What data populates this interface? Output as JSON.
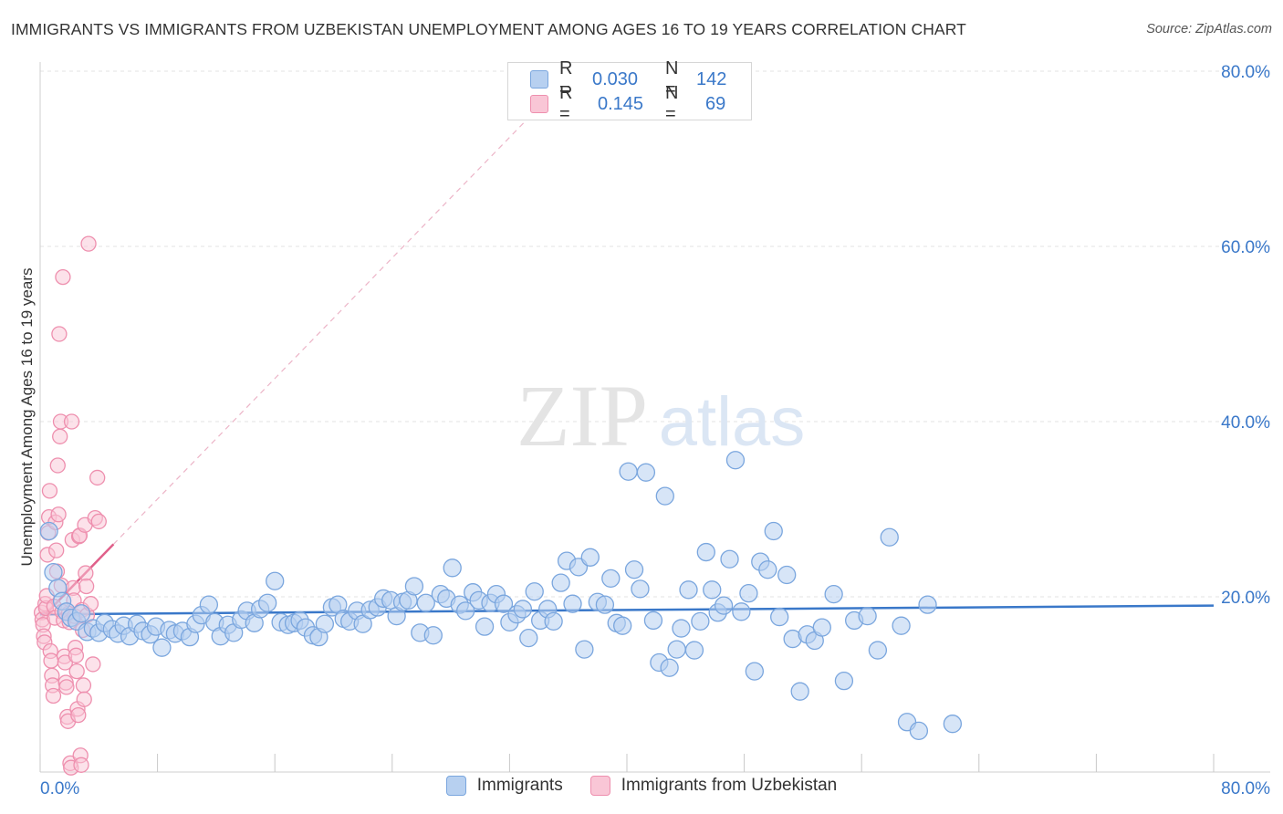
{
  "title": "IMMIGRANTS VS IMMIGRANTS FROM UZBEKISTAN UNEMPLOYMENT AMONG AGES 16 TO 19 YEARS CORRELATION CHART",
  "source": "Source: ZipAtlas.com",
  "watermark": {
    "zip": "ZIP",
    "atlas": "atlas"
  },
  "legend_top": [
    {
      "r_label": "R =",
      "r_value": "0.030",
      "n_label": "N =",
      "n_value": "142"
    },
    {
      "r_label": "R =",
      "r_value": "0.145",
      "n_label": "N =",
      "n_value": "69"
    }
  ],
  "colors": {
    "blue": "#3a78c9",
    "blue_fill": "#b7d0f0",
    "blue_stroke": "#7aa6de",
    "pink": "#e0608a",
    "pink_fill": "#f9c6d6",
    "pink_stroke": "#ee8fae",
    "grid": "#e3e3e3",
    "axis_text": "#3a78c9"
  },
  "chart_data": {
    "type": "scatter",
    "title": "IMMIGRANTS VS IMMIGRANTS FROM UZBEKISTAN UNEMPLOYMENT AMONG AGES 16 TO 19 YEARS CORRELATION CHART",
    "xlabel": "",
    "ylabel": "Unemployment Among Ages 16 to 19 years",
    "xlim": [
      0,
      80
    ],
    "ylim": [
      0,
      80
    ],
    "x_tick_labels": [
      "0.0%",
      "80.0%"
    ],
    "y_tick_labels": [
      "20.0%",
      "40.0%",
      "60.0%",
      "80.0%"
    ],
    "y_ticks": [
      20,
      40,
      60,
      80
    ],
    "legend": [
      "Immigrants",
      "Immigrants from Uzbekistan"
    ],
    "series": [
      {
        "name": "Immigrants",
        "color": "#3a78c9",
        "trend": {
          "x": [
            0,
            80
          ],
          "y": [
            18.0,
            19.0
          ]
        },
        "points": [
          [
            0.6,
            27.5
          ],
          [
            0.9,
            22.8
          ],
          [
            1.2,
            21.0
          ],
          [
            1.5,
            19.5
          ],
          [
            1.8,
            18.3
          ],
          [
            2.1,
            17.6
          ],
          [
            2.5,
            17.2
          ],
          [
            2.8,
            18.1
          ],
          [
            3.2,
            16.0
          ],
          [
            3.6,
            16.4
          ],
          [
            4.0,
            15.9
          ],
          [
            4.4,
            17.0
          ],
          [
            4.9,
            16.3
          ],
          [
            5.3,
            15.8
          ],
          [
            5.7,
            16.7
          ],
          [
            6.1,
            15.5
          ],
          [
            6.6,
            16.9
          ],
          [
            7.0,
            16.1
          ],
          [
            7.5,
            15.7
          ],
          [
            7.9,
            16.6
          ],
          [
            8.3,
            14.2
          ],
          [
            8.8,
            16.2
          ],
          [
            9.2,
            15.8
          ],
          [
            9.7,
            16.1
          ],
          [
            10.2,
            15.4
          ],
          [
            10.6,
            16.9
          ],
          [
            11.0,
            17.9
          ],
          [
            11.5,
            19.1
          ],
          [
            11.9,
            17.1
          ],
          [
            12.3,
            15.5
          ],
          [
            12.8,
            16.8
          ],
          [
            13.2,
            15.9
          ],
          [
            13.7,
            17.4
          ],
          [
            14.1,
            18.4
          ],
          [
            14.6,
            17.0
          ],
          [
            15.0,
            18.6
          ],
          [
            15.5,
            19.3
          ],
          [
            16.0,
            21.8
          ],
          [
            16.4,
            17.1
          ],
          [
            16.9,
            16.8
          ],
          [
            17.3,
            17.0
          ],
          [
            17.7,
            17.3
          ],
          [
            18.1,
            16.5
          ],
          [
            18.6,
            15.6
          ],
          [
            19.0,
            15.4
          ],
          [
            19.4,
            16.9
          ],
          [
            19.9,
            18.8
          ],
          [
            20.3,
            19.1
          ],
          [
            20.7,
            17.5
          ],
          [
            21.1,
            17.2
          ],
          [
            21.6,
            18.4
          ],
          [
            22.0,
            16.9
          ],
          [
            22.5,
            18.5
          ],
          [
            23.0,
            18.8
          ],
          [
            23.4,
            19.8
          ],
          [
            23.9,
            19.6
          ],
          [
            24.3,
            17.8
          ],
          [
            24.7,
            19.4
          ],
          [
            25.1,
            19.6
          ],
          [
            25.5,
            21.2
          ],
          [
            25.9,
            15.9
          ],
          [
            26.3,
            19.3
          ],
          [
            26.8,
            15.6
          ],
          [
            27.3,
            20.3
          ],
          [
            27.7,
            19.8
          ],
          [
            28.1,
            23.3
          ],
          [
            28.6,
            19.1
          ],
          [
            29.0,
            18.4
          ],
          [
            29.5,
            20.5
          ],
          [
            29.9,
            19.6
          ],
          [
            30.3,
            16.6
          ],
          [
            30.7,
            19.3
          ],
          [
            31.1,
            20.3
          ],
          [
            31.6,
            19.2
          ],
          [
            32.0,
            17.1
          ],
          [
            32.5,
            18.0
          ],
          [
            32.9,
            18.6
          ],
          [
            33.3,
            15.3
          ],
          [
            33.7,
            20.6
          ],
          [
            34.1,
            17.3
          ],
          [
            34.6,
            18.6
          ],
          [
            35.0,
            17.2
          ],
          [
            35.5,
            21.6
          ],
          [
            35.9,
            24.1
          ],
          [
            36.3,
            19.2
          ],
          [
            36.7,
            23.4
          ],
          [
            37.1,
            14.0
          ],
          [
            37.5,
            24.5
          ],
          [
            38.0,
            19.4
          ],
          [
            38.5,
            19.1
          ],
          [
            38.9,
            22.1
          ],
          [
            39.3,
            17.0
          ],
          [
            39.7,
            16.7
          ],
          [
            40.1,
            34.3
          ],
          [
            40.5,
            23.1
          ],
          [
            40.9,
            20.9
          ],
          [
            41.3,
            34.2
          ],
          [
            41.8,
            17.3
          ],
          [
            42.2,
            12.5
          ],
          [
            42.6,
            31.5
          ],
          [
            42.9,
            11.9
          ],
          [
            43.4,
            14.0
          ],
          [
            43.7,
            16.4
          ],
          [
            44.2,
            20.8
          ],
          [
            44.6,
            13.9
          ],
          [
            45.0,
            17.2
          ],
          [
            45.4,
            25.1
          ],
          [
            45.8,
            20.8
          ],
          [
            46.2,
            18.2
          ],
          [
            46.6,
            19.0
          ],
          [
            47.0,
            24.3
          ],
          [
            47.4,
            35.6
          ],
          [
            47.8,
            18.3
          ],
          [
            48.3,
            20.4
          ],
          [
            48.7,
            11.5
          ],
          [
            49.1,
            24.0
          ],
          [
            49.6,
            23.1
          ],
          [
            50.0,
            27.5
          ],
          [
            50.4,
            17.7
          ],
          [
            50.9,
            22.5
          ],
          [
            51.3,
            15.2
          ],
          [
            51.8,
            9.2
          ],
          [
            52.3,
            15.7
          ],
          [
            52.8,
            15.0
          ],
          [
            53.3,
            16.5
          ],
          [
            54.1,
            20.3
          ],
          [
            54.8,
            10.4
          ],
          [
            55.5,
            17.3
          ],
          [
            56.4,
            17.8
          ],
          [
            57.1,
            13.9
          ],
          [
            57.9,
            26.8
          ],
          [
            58.7,
            16.7
          ],
          [
            59.1,
            5.7
          ],
          [
            59.9,
            4.7
          ],
          [
            60.5,
            19.1
          ],
          [
            62.2,
            5.5
          ]
        ]
      },
      {
        "name": "Immigrants from Uzbekistan",
        "color": "#e0608a",
        "trend": {
          "x": [
            0,
            5.0
          ],
          "y": [
            17.4,
            26.0
          ]
        },
        "points": [
          [
            0.1,
            18.2
          ],
          [
            0.15,
            17.4
          ],
          [
            0.2,
            16.8
          ],
          [
            0.25,
            15.5
          ],
          [
            0.3,
            14.8
          ],
          [
            0.35,
            19.2
          ],
          [
            0.4,
            18.7
          ],
          [
            0.45,
            20.1
          ],
          [
            0.5,
            24.8
          ],
          [
            0.55,
            27.3
          ],
          [
            0.6,
            29.1
          ],
          [
            0.65,
            32.1
          ],
          [
            0.7,
            13.8
          ],
          [
            0.75,
            12.7
          ],
          [
            0.8,
            11.0
          ],
          [
            0.85,
            9.9
          ],
          [
            0.9,
            8.7
          ],
          [
            0.95,
            18.9
          ],
          [
            1.0,
            17.6
          ],
          [
            1.05,
            28.5
          ],
          [
            1.1,
            25.3
          ],
          [
            1.15,
            22.9
          ],
          [
            1.2,
            35.0
          ],
          [
            1.25,
            29.4
          ],
          [
            1.3,
            50.0
          ],
          [
            1.35,
            38.3
          ],
          [
            1.4,
            40.0
          ],
          [
            1.45,
            21.3
          ],
          [
            1.5,
            18.3
          ],
          [
            1.55,
            56.5
          ],
          [
            1.6,
            17.3
          ],
          [
            1.65,
            13.2
          ],
          [
            1.7,
            12.5
          ],
          [
            1.75,
            10.2
          ],
          [
            1.8,
            9.7
          ],
          [
            1.85,
            6.3
          ],
          [
            1.9,
            5.8
          ],
          [
            1.95,
            18.1
          ],
          [
            2.0,
            17.1
          ],
          [
            2.05,
            1.0
          ],
          [
            2.1,
            0.5
          ],
          [
            2.15,
            40.0
          ],
          [
            2.2,
            26.5
          ],
          [
            2.25,
            21.0
          ],
          [
            2.3,
            19.6
          ],
          [
            2.35,
            17.8
          ],
          [
            2.4,
            14.2
          ],
          [
            2.45,
            13.3
          ],
          [
            2.5,
            11.5
          ],
          [
            2.55,
            7.2
          ],
          [
            2.6,
            6.5
          ],
          [
            2.65,
            26.9
          ],
          [
            2.7,
            27.0
          ],
          [
            2.75,
            1.9
          ],
          [
            2.8,
            0.8
          ],
          [
            2.85,
            18.5
          ],
          [
            2.9,
            16.2
          ],
          [
            2.95,
            9.9
          ],
          [
            3.0,
            8.3
          ],
          [
            3.05,
            28.2
          ],
          [
            3.1,
            22.7
          ],
          [
            3.15,
            21.2
          ],
          [
            3.2,
            17.9
          ],
          [
            3.3,
            60.3
          ],
          [
            3.45,
            19.2
          ],
          [
            3.6,
            12.3
          ],
          [
            3.75,
            29.0
          ],
          [
            3.9,
            33.6
          ],
          [
            4.0,
            28.6
          ]
        ]
      }
    ]
  }
}
